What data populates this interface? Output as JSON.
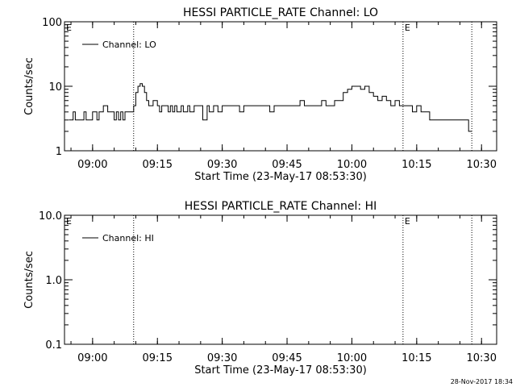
{
  "footer": {
    "timestamp": "28-Nov-2017 18:34"
  },
  "chart_data": [
    {
      "type": "line",
      "title": "HESSI PARTICLE_RATE Channel: LO",
      "xlabel": "Start Time (23-May-17 08:53:30)",
      "ylabel": "Counts/sec",
      "y_scale": "log",
      "ylim": [
        1,
        100
      ],
      "y_ticks": [
        1,
        10,
        100
      ],
      "y_tick_labels": [
        "1",
        "10",
        "100"
      ],
      "xlim": [
        "08:53:30",
        "10:33:30"
      ],
      "x_ticks": [
        "09:00",
        "09:15",
        "09:30",
        "09:45",
        "10:00",
        "10:15",
        "10:30"
      ],
      "x_tick_labels": [
        "09:00",
        "09:15",
        "09:30",
        "09:45",
        "10:00",
        "10:15",
        "10:30"
      ],
      "grid": false,
      "legend": {
        "placement": "top-left",
        "entries": [
          "Channel: LO"
        ]
      },
      "annotations": [
        {
          "text": "E",
          "x": "08:53:30"
        },
        {
          "text": "E",
          "x": "10:11:50"
        }
      ],
      "vlines": [
        "09:09:30",
        "10:11:50",
        "10:27:45"
      ],
      "series": [
        {
          "name": "Channel: LO",
          "color": "#000000",
          "x": [
            "08:54:30",
            "08:55:30",
            "08:56:00",
            "08:56:30",
            "08:57:00",
            "08:58:00",
            "08:58:30",
            "08:59:30",
            "09:00:00",
            "09:00:30",
            "09:01:00",
            "09:01:30",
            "09:02:00",
            "09:02:30",
            "09:03:30",
            "09:04:00",
            "09:05:00",
            "09:05:30",
            "09:06:00",
            "09:06:30",
            "09:07:00",
            "09:07:30",
            "09:08:00",
            "09:08:30",
            "09:09:00",
            "09:09:30",
            "09:10:00",
            "09:10:30",
            "09:11:00",
            "09:11:30",
            "09:12:00",
            "09:12:30",
            "09:13:00",
            "09:13:30",
            "09:14:00",
            "09:15:00",
            "09:15:30",
            "09:16:00",
            "09:17:00",
            "09:17:30",
            "09:18:00",
            "09:18:30",
            "09:19:00",
            "09:19:30",
            "09:20:30",
            "09:21:00",
            "09:22:00",
            "09:22:30",
            "09:23:30",
            "09:24:00",
            "09:25:00",
            "09:25:30",
            "09:26:30",
            "09:27:00",
            "09:28:00",
            "09:29:00",
            "09:30:00",
            "09:31:00",
            "09:32:00",
            "09:33:00",
            "09:34:00",
            "09:35:00",
            "09:36:00",
            "09:37:00",
            "09:38:00",
            "09:39:00",
            "09:40:00",
            "09:41:00",
            "09:42:00",
            "09:43:00",
            "09:44:00",
            "09:45:00",
            "09:46:00",
            "09:47:00",
            "09:48:00",
            "09:49:00",
            "09:50:00",
            "09:51:00",
            "09:52:00",
            "09:53:00",
            "09:54:00",
            "09:55:00",
            "09:56:00",
            "09:57:00",
            "09:58:00",
            "09:59:00",
            "10:00:00",
            "10:01:00",
            "10:02:00",
            "10:03:00",
            "10:04:00",
            "10:05:00",
            "10:06:00",
            "10:07:00",
            "10:08:00",
            "10:09:00",
            "10:10:00",
            "10:11:00",
            "10:12:00",
            "10:13:00",
            "10:14:00",
            "10:15:00",
            "10:16:00",
            "10:17:00",
            "10:18:00",
            "10:19:00",
            "10:20:00",
            "10:21:00",
            "10:22:00",
            "10:23:00",
            "10:24:00",
            "10:25:00",
            "10:26:00",
            "10:27:00",
            "10:27:45"
          ],
          "values": [
            3,
            4,
            3,
            3,
            3,
            4,
            3,
            3,
            4,
            4,
            3,
            4,
            4,
            5,
            4,
            4,
            3,
            4,
            3,
            4,
            3,
            4,
            4,
            4,
            4,
            5,
            8,
            10,
            11,
            10,
            8,
            6,
            5,
            5,
            6,
            5,
            4,
            5,
            5,
            4,
            5,
            4,
            5,
            4,
            5,
            4,
            5,
            4,
            5,
            5,
            5,
            3,
            5,
            4,
            5,
            4,
            5,
            5,
            5,
            5,
            4,
            5,
            5,
            5,
            5,
            5,
            5,
            4,
            5,
            5,
            5,
            5,
            5,
            5,
            6,
            5,
            5,
            5,
            5,
            6,
            5,
            5,
            6,
            6,
            8,
            9,
            10,
            10,
            9,
            10,
            8,
            7,
            6,
            7,
            6,
            5,
            6,
            5,
            5,
            5,
            4,
            5,
            4,
            4,
            3,
            3,
            3,
            3,
            3,
            3,
            3,
            3,
            3,
            2,
            2
          ]
        }
      ]
    },
    {
      "type": "line",
      "title": "HESSI PARTICLE_RATE Channel: HI",
      "xlabel": "Start Time (23-May-17 08:53:30)",
      "ylabel": "Counts/sec",
      "y_scale": "log",
      "ylim": [
        0.1,
        10
      ],
      "y_ticks": [
        0.1,
        1,
        10
      ],
      "y_tick_labels": [
        "0.1",
        "1.0",
        "10.0"
      ],
      "xlim": [
        "08:53:30",
        "10:33:30"
      ],
      "x_ticks": [
        "09:00",
        "09:15",
        "09:30",
        "09:45",
        "10:00",
        "10:15",
        "10:30"
      ],
      "x_tick_labels": [
        "09:00",
        "09:15",
        "09:30",
        "09:45",
        "10:00",
        "10:15",
        "10:30"
      ],
      "grid": false,
      "legend": {
        "placement": "top-left",
        "entries": [
          "Channel: HI"
        ]
      },
      "annotations": [
        {
          "text": "E",
          "x": "08:53:30"
        },
        {
          "text": "E",
          "x": "10:11:50"
        }
      ],
      "vlines": [
        "09:09:30",
        "10:11:50",
        "10:27:45"
      ],
      "series": [
        {
          "name": "Channel: HI",
          "color": "#000000",
          "x": [],
          "values": []
        }
      ]
    }
  ]
}
